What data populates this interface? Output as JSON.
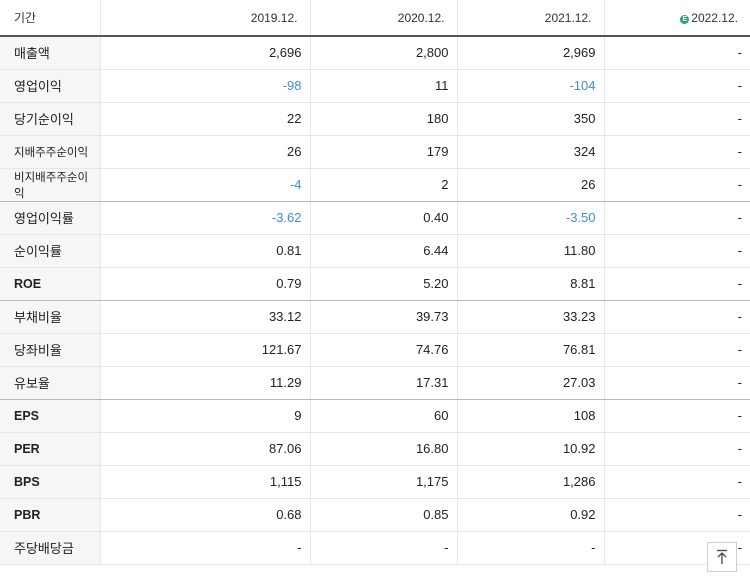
{
  "header": {
    "period_label": "기간",
    "years": [
      "2019.12.",
      "2020.12.",
      "2021.12.",
      "2022.12."
    ],
    "estimate_badge": "E"
  },
  "rows": [
    {
      "label": "매출액",
      "values": [
        "2,696",
        "2,800",
        "2,969",
        "-"
      ]
    },
    {
      "label": "영업이익",
      "values": [
        "-98",
        "11",
        "-104",
        "-"
      ]
    },
    {
      "label": "당기순이익",
      "values": [
        "22",
        "180",
        "350",
        "-"
      ]
    },
    {
      "label": "지배주주순이익",
      "values": [
        "26",
        "179",
        "324",
        "-"
      ]
    },
    {
      "label": "비지배주주순이익",
      "values": [
        "-4",
        "2",
        "26",
        "-"
      ]
    },
    {
      "label": "영업이익률",
      "values": [
        "-3.62",
        "0.40",
        "-3.50",
        "-"
      ]
    },
    {
      "label": "순이익률",
      "values": [
        "0.81",
        "6.44",
        "11.80",
        "-"
      ]
    },
    {
      "label": "ROE",
      "values": [
        "0.79",
        "5.20",
        "8.81",
        "-"
      ]
    },
    {
      "label": "부채비율",
      "values": [
        "33.12",
        "39.73",
        "33.23",
        "-"
      ]
    },
    {
      "label": "당좌비율",
      "values": [
        "121.67",
        "74.76",
        "76.81",
        "-"
      ]
    },
    {
      "label": "유보율",
      "values": [
        "11.29",
        "17.31",
        "27.03",
        "-"
      ]
    },
    {
      "label": "EPS",
      "values": [
        "9",
        "60",
        "108",
        "-"
      ]
    },
    {
      "label": "PER",
      "values": [
        "87.06",
        "16.80",
        "10.92",
        "-"
      ]
    },
    {
      "label": "BPS",
      "values": [
        "1,115",
        "1,175",
        "1,286",
        "-"
      ]
    },
    {
      "label": "PBR",
      "values": [
        "0.68",
        "0.85",
        "0.92",
        "-"
      ]
    },
    {
      "label": "주당배당금",
      "values": [
        "-",
        "-",
        "-",
        "-"
      ]
    }
  ],
  "colors": {
    "negative": "#3d8fd6",
    "label_bg": "#f6f6f6",
    "estimate_badge": "#2aa36b"
  },
  "icons": {
    "scroll_top": "arrow-up-to-top-icon"
  }
}
